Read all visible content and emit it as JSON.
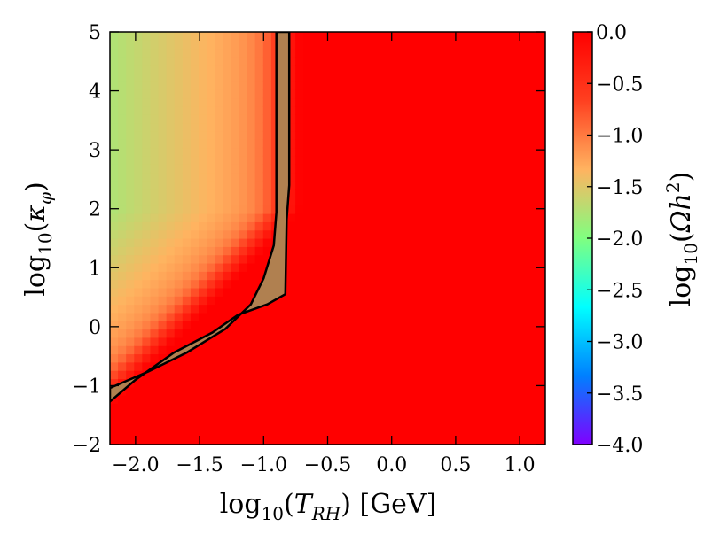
{
  "chart_data": {
    "type": "heatmap",
    "title": "",
    "x": {
      "label_prefix": "log",
      "label_sub": "10",
      "label_var": "T",
      "label_var_sub": "RH",
      "label_suffix": "[GeV]",
      "range": [
        -2.2,
        1.2
      ],
      "ticks": [
        -2.0,
        -1.5,
        -1.0,
        -0.5,
        0.0,
        0.5,
        1.0
      ],
      "tick_labels": [
        "−2.0",
        "−1.5",
        "−1.0",
        "−0.5",
        "0.0",
        "0.5",
        "1.0"
      ]
    },
    "y": {
      "label_prefix": "log",
      "label_sub": "10",
      "label_var": "κ",
      "label_var_sub": "φ",
      "range": [
        -2,
        5
      ],
      "ticks": [
        -2,
        -1,
        0,
        1,
        2,
        3,
        4,
        5
      ],
      "tick_labels": [
        "−2",
        "−1",
        "0",
        "1",
        "2",
        "3",
        "4",
        "5"
      ]
    },
    "colorbar": {
      "label_prefix": "log",
      "label_sub": "10",
      "label_var": "Ωh",
      "label_sup": "2",
      "range": [
        -4.0,
        0.0
      ],
      "ticks": [
        -4.0,
        -3.5,
        -3.0,
        -2.5,
        -2.0,
        -1.5,
        -1.0,
        -0.5,
        0.0
      ],
      "tick_labels": [
        "−4.0",
        "−3.5",
        "−3.0",
        "−2.5",
        "−2.0",
        "−1.5",
        "−1.0",
        "−0.5",
        "0.0"
      ],
      "colormap": "rainbow",
      "colormap_stops": [
        "#8000ff",
        "#0080ff",
        "#00ffff",
        "#80ff80",
        "#ffb360",
        "#ff4020",
        "#ff0000"
      ]
    },
    "observed_band": {
      "description": "log10(Ωh²) matches observed dark matter abundance",
      "fill": "#b08050",
      "left_boundary": [
        [
          -2.2,
          -1.04
        ],
        [
          -1.9,
          -0.76
        ],
        [
          -1.6,
          -0.44
        ],
        [
          -1.3,
          -0.04
        ],
        [
          -1.1,
          0.38
        ],
        [
          -1.0,
          0.82
        ],
        [
          -0.92,
          1.38
        ],
        [
          -0.9,
          1.94
        ],
        [
          -0.9,
          5.0
        ]
      ],
      "right_boundary": [
        [
          -0.8,
          5.0
        ],
        [
          -0.8,
          2.4
        ],
        [
          -0.82,
          1.82
        ],
        [
          -0.83,
          0.55
        ],
        [
          -0.97,
          0.38
        ],
        [
          -1.2,
          0.2
        ],
        [
          -1.4,
          -0.1
        ],
        [
          -1.7,
          -0.44
        ],
        [
          -2.0,
          -0.9
        ],
        [
          -2.2,
          -1.27
        ]
      ]
    },
    "grid": false
  }
}
